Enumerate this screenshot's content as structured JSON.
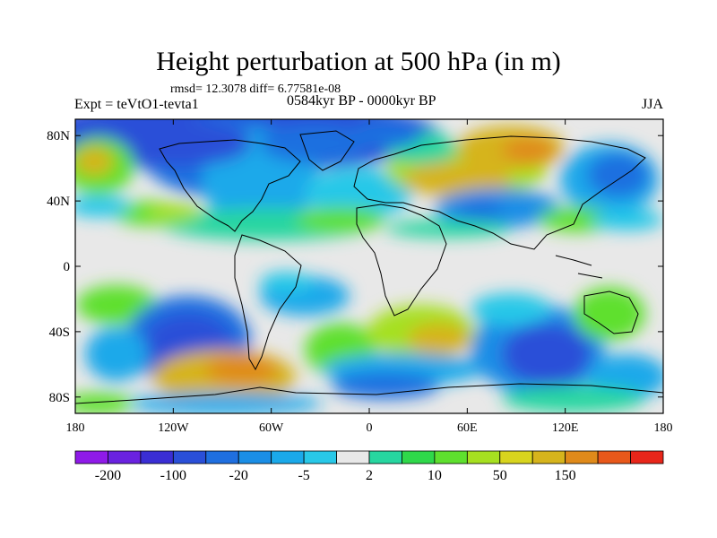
{
  "title": "Height perturbation at 500 hPa (in m)",
  "stats": "rmsd= 12.3078 diff= 6.77581e-08",
  "experiment": "Expt = teVtO1-tevta1",
  "period": "0584kyr BP - 0000kyr BP",
  "season": "JJA",
  "lat_ticks": [
    "80N",
    "40N",
    "0",
    "40S",
    "80S"
  ],
  "lat_values": [
    80,
    40,
    0,
    -40,
    -80
  ],
  "lon_ticks": [
    "180",
    "120W",
    "60W",
    "0",
    "60E",
    "120E",
    "180"
  ],
  "lon_values": [
    -180,
    -120,
    -60,
    0,
    60,
    120,
    180
  ],
  "colorbar": {
    "colors": [
      "#8f1ae8",
      "#6a22e0",
      "#3a2ed4",
      "#2a4fd8",
      "#1f6fe0",
      "#1a8ee6",
      "#1aa9ea",
      "#28c8e8",
      "#e8e8e8",
      "#27d6a0",
      "#2fd84a",
      "#5ee02e",
      "#a6e020",
      "#d8d41e",
      "#d6b41c",
      "#e08a1a",
      "#e8581a",
      "#e8261a"
    ],
    "labels": [
      "-200",
      "-100",
      "-20",
      "-5",
      "2",
      "10",
      "50",
      "150"
    ]
  }
}
